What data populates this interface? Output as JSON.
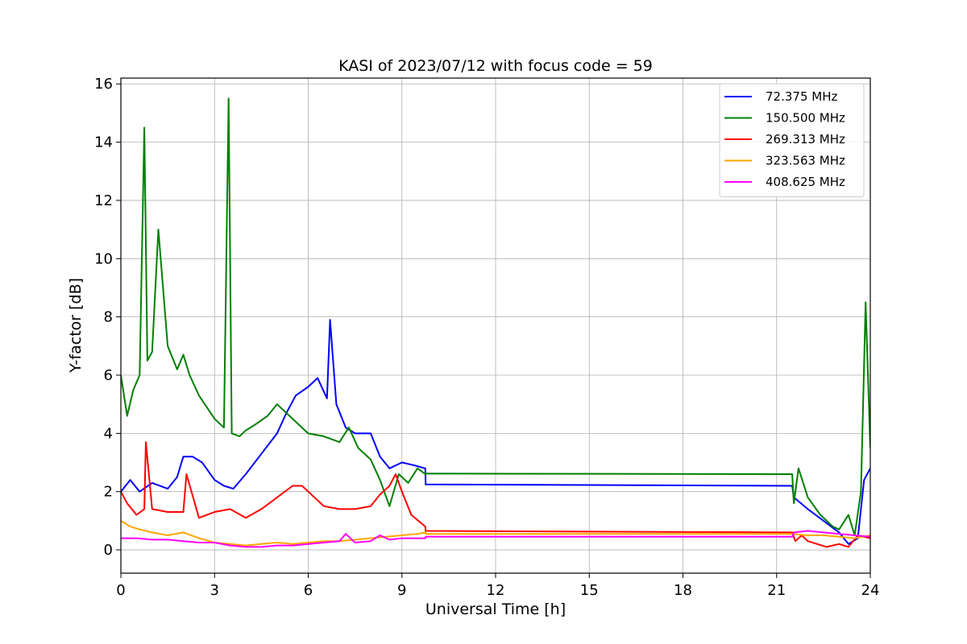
{
  "chart_data": {
    "type": "line",
    "title": "KASI of 2023/07/12 with focus code = 59",
    "xlabel": "Universal Time [h]",
    "ylabel": "Y-factor [dB]",
    "xlim": [
      0,
      24
    ],
    "ylim": [
      -0.8,
      16.2
    ],
    "xticks": [
      0,
      3,
      6,
      9,
      12,
      15,
      18,
      21,
      24
    ],
    "yticks": [
      0,
      2,
      4,
      6,
      8,
      10,
      12,
      14,
      16
    ],
    "grid": true,
    "legend_position": "top-right",
    "series": [
      {
        "name": " 72.375 MHz",
        "color": "#0000ff",
        "x": [
          0,
          0.3,
          0.6,
          1.0,
          1.5,
          1.8,
          2.0,
          2.3,
          2.6,
          3.0,
          3.3,
          3.6,
          4.0,
          4.5,
          5.0,
          5.3,
          5.6,
          6.0,
          6.3,
          6.6,
          6.7,
          6.9,
          7.2,
          7.5,
          8.0,
          8.3,
          8.6,
          9.0,
          9.4,
          9.75,
          9.76,
          21.5,
          21.55,
          22.0,
          22.5,
          23.0,
          23.3,
          23.6,
          23.8,
          24.0
        ],
        "y": [
          2.0,
          2.4,
          2.0,
          2.3,
          2.1,
          2.5,
          3.2,
          3.2,
          3.0,
          2.4,
          2.2,
          2.1,
          2.6,
          3.3,
          4.0,
          4.7,
          5.3,
          5.6,
          5.9,
          5.2,
          7.9,
          5.0,
          4.2,
          4.0,
          4.0,
          3.2,
          2.8,
          3.0,
          2.9,
          2.8,
          2.25,
          2.2,
          1.8,
          1.4,
          1.0,
          0.6,
          0.2,
          0.4,
          2.4,
          2.8
        ]
      },
      {
        "name": "150.500 MHz",
        "color": "#008000",
        "x": [
          0,
          0.2,
          0.4,
          0.6,
          0.75,
          0.85,
          1.0,
          1.2,
          1.5,
          1.8,
          2.0,
          2.2,
          2.5,
          3.0,
          3.3,
          3.45,
          3.55,
          3.8,
          4.0,
          4.3,
          4.7,
          5.0,
          5.3,
          5.6,
          6.0,
          6.5,
          7.0,
          7.3,
          7.6,
          8.0,
          8.3,
          8.6,
          8.9,
          9.2,
          9.5,
          9.75,
          9.76,
          21.5,
          21.55,
          21.7,
          22.0,
          22.4,
          22.8,
          23.0,
          23.3,
          23.5,
          23.7,
          23.85,
          24.0
        ],
        "y": [
          6.0,
          4.6,
          5.5,
          6.0,
          14.5,
          6.5,
          6.8,
          11.0,
          7.0,
          6.2,
          6.7,
          6.0,
          5.3,
          4.5,
          4.2,
          15.5,
          4.0,
          3.9,
          4.1,
          4.3,
          4.6,
          5.0,
          4.7,
          4.4,
          4.0,
          3.9,
          3.7,
          4.2,
          3.5,
          3.1,
          2.4,
          1.5,
          2.6,
          2.3,
          2.8,
          2.6,
          2.62,
          2.6,
          1.6,
          2.8,
          1.8,
          1.2,
          0.8,
          0.7,
          1.2,
          0.5,
          2.0,
          8.5,
          3.5
        ]
      },
      {
        "name": "269.313 MHz",
        "color": "#ff0000",
        "x": [
          0,
          0.2,
          0.5,
          0.75,
          0.8,
          1.0,
          1.5,
          2.0,
          2.1,
          2.5,
          3.0,
          3.5,
          4.0,
          4.5,
          5.0,
          5.5,
          5.8,
          6.0,
          6.5,
          7.0,
          7.5,
          8.0,
          8.3,
          8.6,
          8.8,
          9.0,
          9.3,
          9.75,
          9.76,
          21.5,
          21.6,
          21.8,
          22.0,
          22.3,
          22.6,
          23.0,
          23.3,
          23.6,
          24.0
        ],
        "y": [
          2.0,
          1.6,
          1.2,
          1.4,
          3.7,
          1.4,
          1.3,
          1.3,
          2.6,
          1.1,
          1.3,
          1.4,
          1.1,
          1.4,
          1.8,
          2.2,
          2.2,
          2.0,
          1.5,
          1.4,
          1.4,
          1.5,
          1.9,
          2.2,
          2.6,
          2.0,
          1.2,
          0.8,
          0.65,
          0.6,
          0.3,
          0.5,
          0.3,
          0.2,
          0.1,
          0.2,
          0.1,
          0.5,
          0.4
        ]
      },
      {
        "name": "323.563 MHz",
        "color": "#ffa500",
        "x": [
          0,
          0.3,
          0.6,
          1.0,
          1.5,
          2.0,
          2.5,
          3.0,
          3.5,
          4.0,
          4.5,
          5.0,
          5.5,
          6.0,
          6.5,
          7.0,
          7.5,
          8.0,
          8.5,
          9.0,
          9.5,
          9.75,
          9.76,
          21.5,
          22.0,
          22.5,
          23.0,
          23.5,
          24.0
        ],
        "y": [
          1.0,
          0.8,
          0.7,
          0.6,
          0.5,
          0.6,
          0.4,
          0.25,
          0.2,
          0.15,
          0.2,
          0.25,
          0.2,
          0.25,
          0.3,
          0.3,
          0.35,
          0.4,
          0.45,
          0.5,
          0.55,
          0.6,
          0.55,
          0.55,
          0.5,
          0.5,
          0.45,
          0.4,
          0.5
        ]
      },
      {
        "name": "408.625 MHz",
        "color": "#ff00ff",
        "x": [
          0,
          0.5,
          1.0,
          1.5,
          2.0,
          2.5,
          3.0,
          3.5,
          4.0,
          4.5,
          5.0,
          5.5,
          6.0,
          6.5,
          7.0,
          7.2,
          7.5,
          8.0,
          8.3,
          8.6,
          9.0,
          9.5,
          9.75,
          9.76,
          21.5,
          21.55,
          22.0,
          22.5,
          23.0,
          23.5,
          24.0
        ],
        "y": [
          0.4,
          0.4,
          0.35,
          0.35,
          0.3,
          0.25,
          0.25,
          0.15,
          0.1,
          0.1,
          0.15,
          0.15,
          0.2,
          0.25,
          0.3,
          0.55,
          0.25,
          0.3,
          0.5,
          0.35,
          0.4,
          0.4,
          0.4,
          0.45,
          0.45,
          0.6,
          0.65,
          0.6,
          0.55,
          0.5,
          0.45
        ]
      }
    ]
  }
}
